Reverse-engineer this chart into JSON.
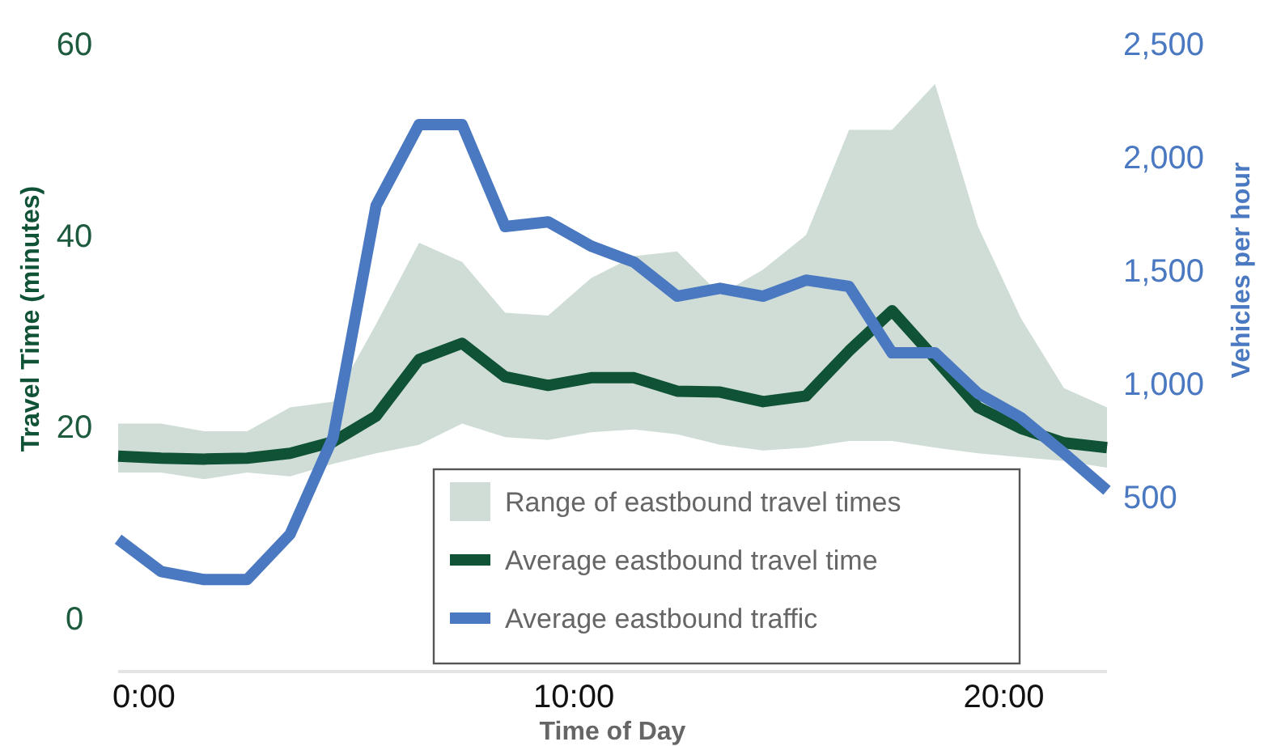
{
  "chart_data": {
    "type": "line",
    "xlabel": "Time of Day",
    "ylabel": "Travel Time (minutes)",
    "y2label": "Vehicles per hour",
    "x": [
      -0.6,
      0.4,
      1.4,
      2.4,
      3.4,
      4.4,
      5.4,
      6.4,
      7.4,
      8.4,
      9.4,
      10.4,
      11.4,
      12.4,
      13.4,
      14.4,
      15.4,
      16.4,
      17.4,
      18.4,
      19.4,
      20.4,
      21.4,
      22.4
    ],
    "xlim": [
      -0.6,
      22.4
    ],
    "xticks": [
      {
        "value": 0,
        "label": "0:00"
      },
      {
        "value": 10,
        "label": "10:00"
      },
      {
        "value": 20,
        "label": "20:00"
      }
    ],
    "ylim": [
      -5.6,
      60
    ],
    "yticks": [
      0,
      20,
      40,
      60
    ],
    "y2lim": [
      -270,
      2500
    ],
    "y2ticks": [
      {
        "value": 500,
        "label": "500"
      },
      {
        "value": 1000,
        "label": "1,000"
      },
      {
        "value": 1500,
        "label": "1,500"
      },
      {
        "value": 2000,
        "label": "2,000"
      },
      {
        "value": 2500,
        "label": "2,500"
      }
    ],
    "legend": "bottom",
    "grid": false,
    "line_style": "solid",
    "marker": "none",
    "series": [
      {
        "type": "area",
        "name": "Range of eastbound travel times",
        "color": "#cfddd6",
        "values": [
          null,
          null,
          null,
          null,
          null,
          null,
          null,
          null,
          null,
          null,
          null,
          null,
          null,
          null,
          null,
          null,
          null,
          null,
          null,
          null,
          null,
          null,
          null,
          null
        ]
      },
      {
        "type": "line",
        "name": "Average eastbound travel time",
        "color": "#105236",
        "values": [
          16.9,
          16.7,
          16.6,
          16.7,
          17.2,
          18.4,
          21.1,
          27.0,
          28.7,
          25.2,
          24.3,
          25.1,
          25.1,
          23.7,
          23.6,
          22.6,
          23.2,
          27.9,
          32.1,
          27.1,
          22.0,
          19.8,
          18.3,
          17.8
        ],
        "upper": [
          20.3,
          20.3,
          19.5,
          19.5,
          22.0,
          22.6,
          30.7,
          39.2,
          37.2,
          31.9,
          31.6,
          35.5,
          37.8,
          38.3,
          33.8,
          36.4,
          40.0,
          51.0,
          51.0,
          55.8,
          40.9,
          31.3,
          24.0,
          22.0
        ],
        "lower": [
          15.2,
          15.2,
          14.5,
          15.2,
          14.8,
          16.1,
          17.2,
          18.1,
          20.3,
          18.9,
          18.6,
          19.4,
          19.7,
          19.2,
          18.1,
          17.5,
          17.8,
          18.5,
          18.5,
          17.8,
          17.2,
          16.8,
          16.4,
          15.7
        ]
      },
      {
        "type": "line",
        "name": "Average eastbound traffic",
        "color": "#4a79c1",
        "axis": "y2",
        "values": [
          314,
          171,
          136,
          136,
          336,
          764,
          1786,
          2143,
          2143,
          1693,
          1714,
          1607,
          1536,
          1386,
          1421,
          1386,
          1457,
          1429,
          1136,
          1136,
          957,
          850,
          693,
          529
        ]
      }
    ]
  }
}
